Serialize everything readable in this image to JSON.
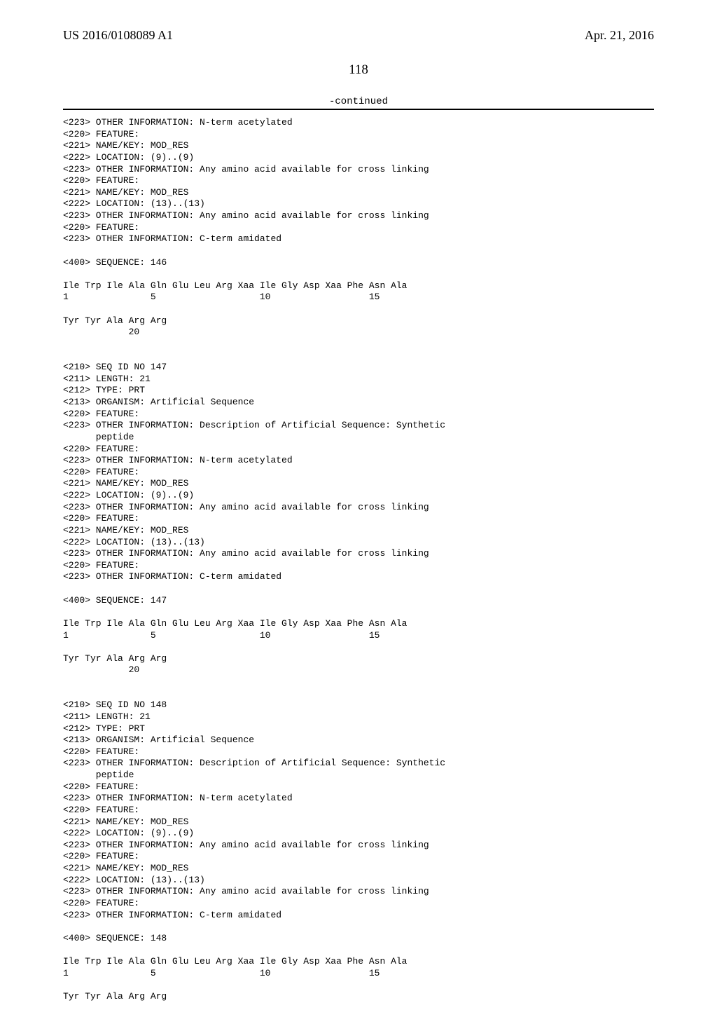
{
  "header": {
    "pub_number": "US 2016/0108089 A1",
    "pub_date": "Apr. 21, 2016"
  },
  "page_number": "118",
  "continued": "-continued",
  "listing_text": "<223> OTHER INFORMATION: N-term acetylated\n<220> FEATURE:\n<221> NAME/KEY: MOD_RES\n<222> LOCATION: (9)..(9)\n<223> OTHER INFORMATION: Any amino acid available for cross linking\n<220> FEATURE:\n<221> NAME/KEY: MOD_RES\n<222> LOCATION: (13)..(13)\n<223> OTHER INFORMATION: Any amino acid available for cross linking\n<220> FEATURE:\n<223> OTHER INFORMATION: C-term amidated\n\n<400> SEQUENCE: 146\n\nIle Trp Ile Ala Gln Glu Leu Arg Xaa Ile Gly Asp Xaa Phe Asn Ala\n1               5                   10                  15\n\nTyr Tyr Ala Arg Arg\n            20\n\n\n<210> SEQ ID NO 147\n<211> LENGTH: 21\n<212> TYPE: PRT\n<213> ORGANISM: Artificial Sequence\n<220> FEATURE:\n<223> OTHER INFORMATION: Description of Artificial Sequence: Synthetic\n      peptide\n<220> FEATURE:\n<223> OTHER INFORMATION: N-term acetylated\n<220> FEATURE:\n<221> NAME/KEY: MOD_RES\n<222> LOCATION: (9)..(9)\n<223> OTHER INFORMATION: Any amino acid available for cross linking\n<220> FEATURE:\n<221> NAME/KEY: MOD_RES\n<222> LOCATION: (13)..(13)\n<223> OTHER INFORMATION: Any amino acid available for cross linking\n<220> FEATURE:\n<223> OTHER INFORMATION: C-term amidated\n\n<400> SEQUENCE: 147\n\nIle Trp Ile Ala Gln Glu Leu Arg Xaa Ile Gly Asp Xaa Phe Asn Ala\n1               5                   10                  15\n\nTyr Tyr Ala Arg Arg\n            20\n\n\n<210> SEQ ID NO 148\n<211> LENGTH: 21\n<212> TYPE: PRT\n<213> ORGANISM: Artificial Sequence\n<220> FEATURE:\n<223> OTHER INFORMATION: Description of Artificial Sequence: Synthetic\n      peptide\n<220> FEATURE:\n<223> OTHER INFORMATION: N-term acetylated\n<220> FEATURE:\n<221> NAME/KEY: MOD_RES\n<222> LOCATION: (9)..(9)\n<223> OTHER INFORMATION: Any amino acid available for cross linking\n<220> FEATURE:\n<221> NAME/KEY: MOD_RES\n<222> LOCATION: (13)..(13)\n<223> OTHER INFORMATION: Any amino acid available for cross linking\n<220> FEATURE:\n<223> OTHER INFORMATION: C-term amidated\n\n<400> SEQUENCE: 148\n\nIle Trp Ile Ala Gln Glu Leu Arg Xaa Ile Gly Asp Xaa Phe Asn Ala\n1               5                   10                  15\n\nTyr Tyr Ala Arg Arg"
}
